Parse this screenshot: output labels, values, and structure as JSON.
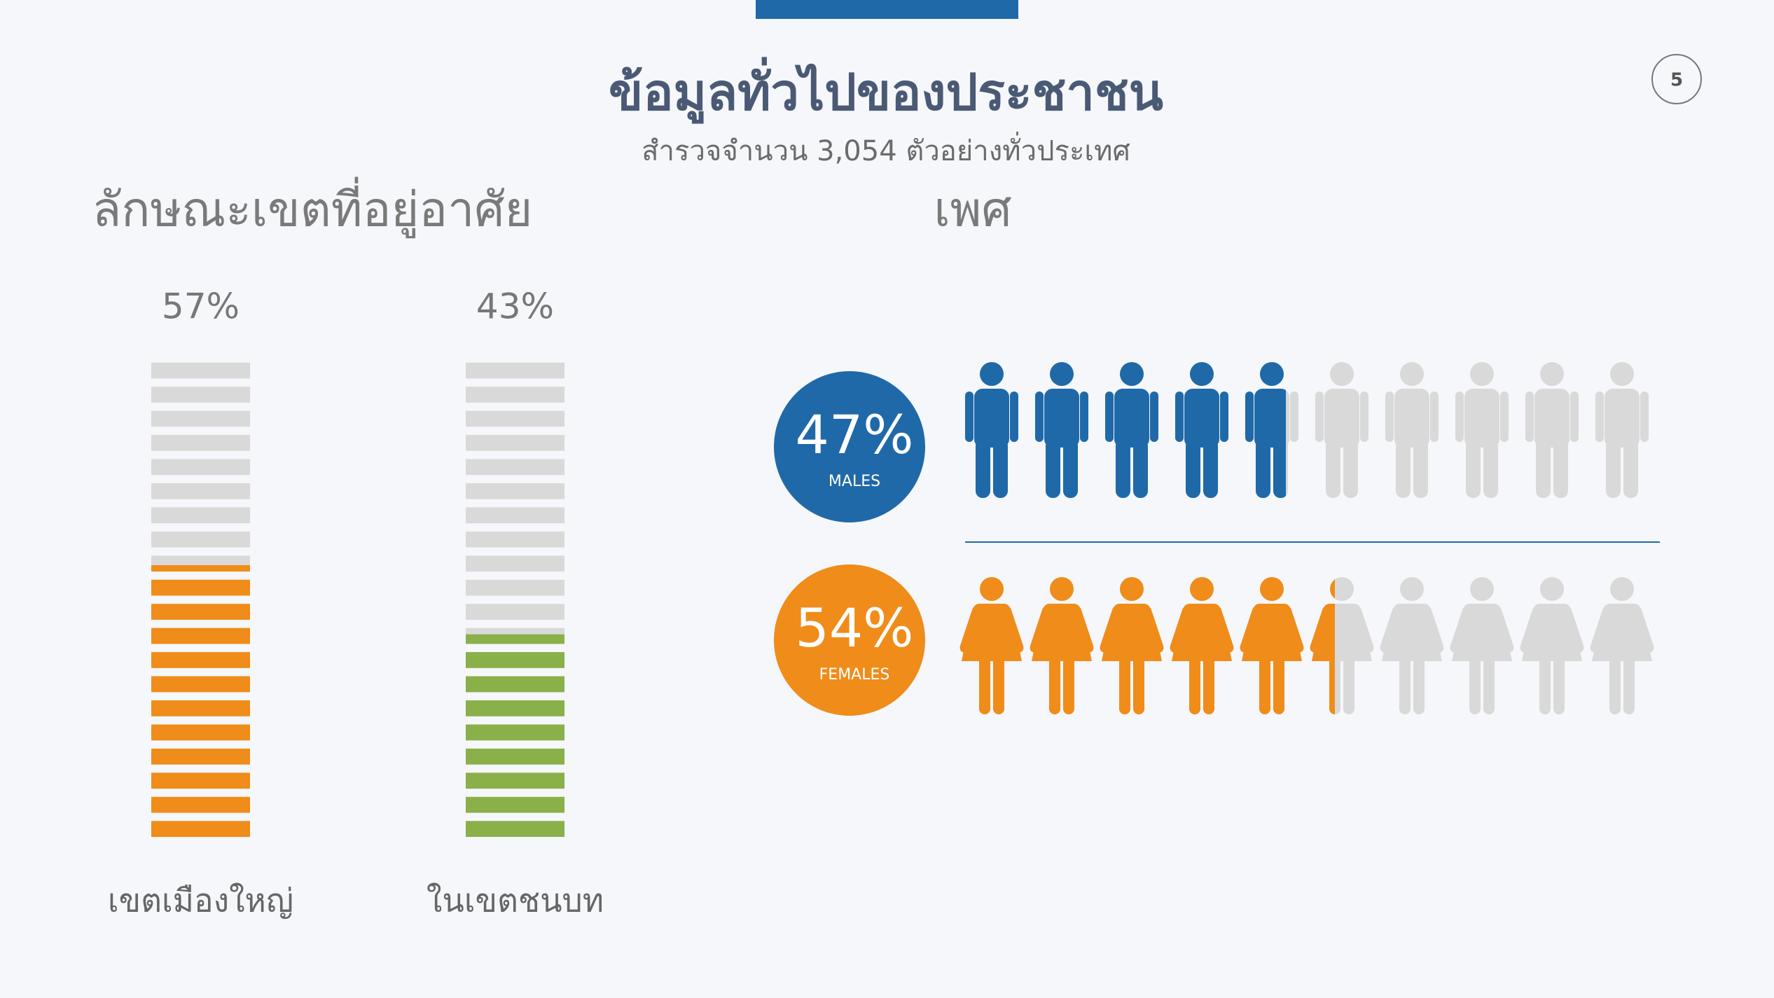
{
  "header": {
    "title": "ข้อมูลทั่วไปของประชาชน",
    "subtitle": "สำรวจจำนวน 3,054 ตัวอย่างทั่วประเทศ",
    "page_number": "5"
  },
  "chart_data": [
    {
      "type": "segment-bar",
      "title": "ลักษณะเขตที่อยู่อาศัย",
      "categories": [
        "เขตเมืองใหญ่",
        "ในเขตชนบท"
      ],
      "values": [
        57,
        43
      ],
      "value_labels": [
        "57%",
        "43%"
      ],
      "colors": [
        "#f08c1a",
        "#8ab04a"
      ],
      "track_color": "#d9d9d9",
      "ylim": [
        0,
        100
      ],
      "segments": 20
    },
    {
      "type": "pictogram",
      "title": "เพศ",
      "categories": [
        "MALES",
        "FEMALES"
      ],
      "values": [
        47,
        54
      ],
      "value_labels": [
        "47%",
        "54%"
      ],
      "colors": [
        "#1f69a8",
        "#f08c1a"
      ],
      "track_color": "#d9d9d9",
      "ylim": [
        0,
        100
      ],
      "icons": 10
    }
  ]
}
